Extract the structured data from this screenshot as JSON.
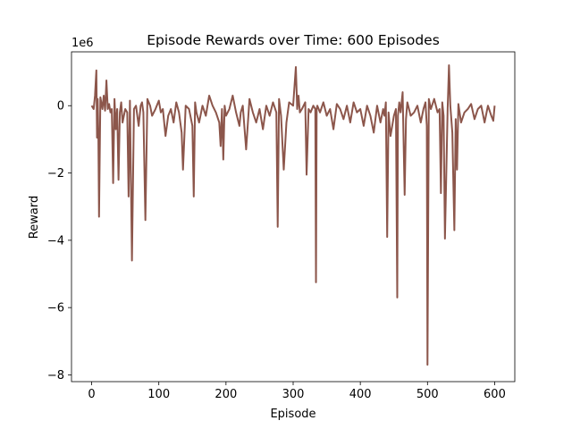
{
  "chart_data": {
    "type": "line",
    "title": "Episode Rewards over Time: 600 Episodes",
    "xlabel": "Episode",
    "ylabel": "Reward",
    "offset_text": "1e6",
    "xlim": [
      -30,
      630
    ],
    "ylim": [
      -8.2,
      1.6
    ],
    "x_ticks": [
      0,
      100,
      200,
      300,
      400,
      500,
      600
    ],
    "x_tick_labels": [
      "0",
      "100",
      "200",
      "300",
      "400",
      "500",
      "600"
    ],
    "y_ticks": [
      0,
      -2,
      -4,
      -6,
      -8
    ],
    "y_tick_labels": [
      "0",
      "−2",
      "−4",
      "−6",
      "−8"
    ],
    "grid": false,
    "line_color": "#8c564b",
    "series": [
      {
        "x": [
          0,
          3,
          5,
          7,
          8,
          9,
          10,
          11,
          13,
          16,
          18,
          20,
          22,
          24,
          26,
          28,
          30,
          32,
          34,
          36,
          38,
          40,
          42,
          44,
          46,
          50,
          53,
          55,
          57,
          60,
          63,
          66,
          70,
          73,
          75,
          77,
          80,
          83,
          87,
          90,
          95,
          100,
          103,
          106,
          110,
          114,
          118,
          122,
          126,
          130,
          134,
          136,
          140,
          145,
          150,
          152,
          154,
          156,
          160,
          165,
          170,
          175,
          180,
          185,
          190,
          192,
          194,
          196,
          198,
          200,
          205,
          210,
          215,
          220,
          222,
          225,
          230,
          235,
          240,
          245,
          250,
          255,
          260,
          265,
          270,
          275,
          277,
          279,
          282,
          286,
          290,
          294,
          300,
          304,
          306,
          308,
          310,
          313,
          318,
          320,
          323,
          326,
          330,
          333,
          334,
          335,
          336,
          340,
          345,
          350,
          355,
          360,
          365,
          370,
          375,
          380,
          385,
          390,
          395,
          400,
          405,
          410,
          415,
          420,
          425,
          430,
          434,
          436,
          438,
          440,
          442,
          445,
          450,
          453,
          455,
          456,
          458,
          460,
          463,
          466,
          468,
          470,
          475,
          480,
          485,
          490,
          494,
          497,
          499,
          500,
          502,
          505,
          510,
          515,
          518,
          520,
          522,
          524,
          526,
          530,
          532,
          534,
          537,
          540,
          542,
          544,
          546,
          550,
          555,
          560,
          565,
          570,
          575,
          580,
          585,
          590,
          595,
          598,
          600
        ],
        "y": [
          0,
          -0.1,
          0.3,
          1.05,
          -0.95,
          0.2,
          -0.9,
          -3.3,
          0.25,
          -0.1,
          0.3,
          -0.15,
          0.75,
          -0.1,
          0.05,
          -0.2,
          -0.1,
          -2.3,
          0.2,
          -0.7,
          -0.1,
          -2.2,
          -0.2,
          0.1,
          -0.5,
          -0.1,
          -0.2,
          -2.7,
          0.15,
          -4.6,
          -0.1,
          0,
          -0.6,
          0,
          0.1,
          -0.2,
          -3.4,
          0.2,
          0,
          -0.3,
          -0.1,
          0.15,
          -0.2,
          -0.1,
          -0.9,
          -0.3,
          -0.1,
          -0.5,
          0.1,
          -0.2,
          -0.8,
          -1.9,
          0,
          -0.1,
          -0.6,
          -2.7,
          0.1,
          -0.2,
          -0.5,
          0,
          -0.3,
          0.3,
          0,
          -0.2,
          -0.5,
          -1.2,
          -0.1,
          -1.6,
          0,
          -0.3,
          -0.1,
          0.3,
          -0.2,
          -0.6,
          -0.2,
          0,
          -1.3,
          0.2,
          -0.2,
          -0.5,
          -0.1,
          -0.7,
          0,
          -0.3,
          0.1,
          -0.2,
          -3.6,
          0.2,
          -0.3,
          -1.9,
          -0.5,
          0.1,
          0,
          1.15,
          -0.1,
          0.3,
          -0.2,
          -0.1,
          0.1,
          -2.05,
          -0.1,
          -0.2,
          0,
          -0.1,
          -5.25,
          -0.1,
          0,
          -0.2,
          0.1,
          -0.3,
          -0.1,
          -0.7,
          0.05,
          -0.1,
          -0.4,
          0,
          -0.5,
          0.1,
          -0.2,
          -0.1,
          -0.6,
          0,
          -0.3,
          -0.8,
          0,
          -0.5,
          -0.1,
          -0.3,
          0.1,
          -3.9,
          -0.2,
          -0.9,
          -0.3,
          -0.1,
          -5.7,
          -0.3,
          0.1,
          -0.2,
          0.4,
          -2.65,
          -0.4,
          0.1,
          -0.3,
          -0.2,
          0,
          -0.5,
          -0.1,
          0.1,
          -0.6,
          -7.7,
          0.2,
          -0.1,
          0.2,
          -0.2,
          -0.1,
          -2.6,
          0.1,
          -0.3,
          -3.95,
          -0.1,
          1.2,
          0,
          -0.8,
          -3.7,
          -0.4,
          -1.9,
          0.05,
          -0.5,
          -0.2,
          -0.1,
          0.05,
          -0.4,
          -0.1,
          0,
          -0.5,
          0,
          -0.3,
          -0.45,
          0
        ]
      }
    ]
  }
}
